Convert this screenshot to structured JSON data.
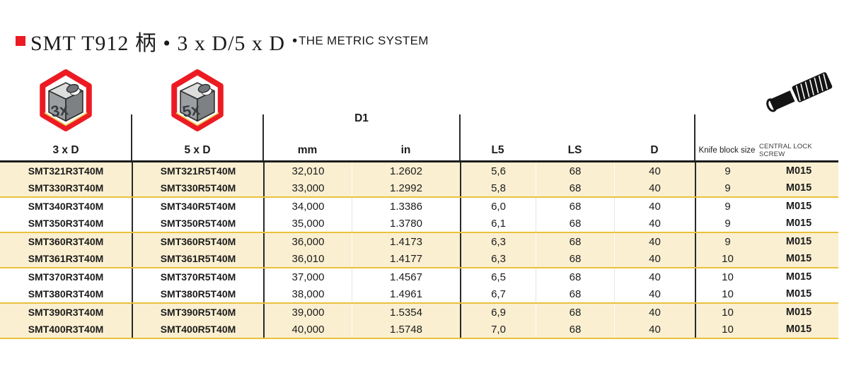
{
  "title": {
    "marker_color": "#ec1b23",
    "serif_text": "SMT T912 柄 • 3 x D/5 x D",
    "bullet": "•",
    "system_text": "THE METRIC SYSTEM"
  },
  "badges": {
    "badge_3d": {
      "cube_label": "3x"
    },
    "badge_5d": {
      "cube_label": "5x"
    }
  },
  "table": {
    "headers": {
      "col_3d": "3 x D",
      "col_5d": "5 x D",
      "d1_group": "D1",
      "mm": "mm",
      "inch": "in",
      "l5": "L5",
      "ls": "LS",
      "d": "D",
      "knife": "Knife block size",
      "screw": "CENTRAL LOCK SCREW"
    },
    "rows": [
      [
        "SMT321R3T40M",
        "SMT321R5T40M",
        "32,010",
        "1.2602",
        "5,6",
        "68",
        "40",
        "9",
        "M015"
      ],
      [
        "SMT330R3T40M",
        "SMT330R5T40M",
        "33,000",
        "1.2992",
        "5,8",
        "68",
        "40",
        "9",
        "M015"
      ],
      [
        "SMT340R3T40M",
        "SMT340R5T40M",
        "34,000",
        "1.3386",
        "6,0",
        "68",
        "40",
        "9",
        "M015"
      ],
      [
        "SMT350R3T40M",
        "SMT350R5T40M",
        "35,000",
        "1.3780",
        "6,1",
        "68",
        "40",
        "9",
        "M015"
      ],
      [
        "SMT360R3T40M",
        "SMT360R5T40M",
        "36,000",
        "1.4173",
        "6,3",
        "68",
        "40",
        "9",
        "M015"
      ],
      [
        "SMT361R3T40M",
        "SMT361R5T40M",
        "36,010",
        "1.4177",
        "6,3",
        "68",
        "40",
        "10",
        "M015"
      ],
      [
        "SMT370R3T40M",
        "SMT370R5T40M",
        "37,000",
        "1.4567",
        "6,5",
        "68",
        "40",
        "10",
        "M015"
      ],
      [
        "SMT380R3T40M",
        "SMT380R5T40M",
        "38,000",
        "1.4961",
        "6,7",
        "68",
        "40",
        "10",
        "M015"
      ],
      [
        "SMT390R3T40M",
        "SMT390R5T40M",
        "39,000",
        "1.5354",
        "6,9",
        "68",
        "40",
        "10",
        "M015"
      ],
      [
        "SMT400R3T40M",
        "SMT400R5T40M",
        "40,000",
        "1.5748",
        "7,0",
        "68",
        "40",
        "10",
        "M015"
      ]
    ]
  },
  "colors": {
    "accent_red": "#ec1b23",
    "row_beige": "#faefd1",
    "gold_separator": "#e9c23b",
    "grid_dark": "#2a2a2a"
  }
}
